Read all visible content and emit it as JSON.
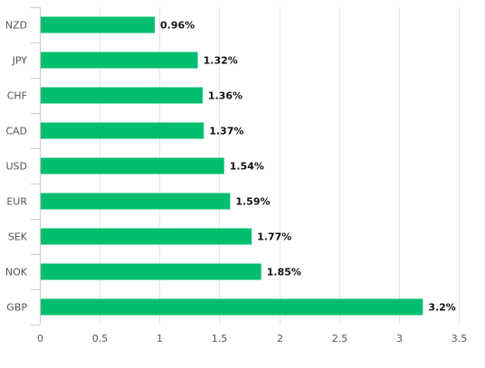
{
  "chart_data": {
    "type": "bar",
    "orientation": "horizontal",
    "categories": [
      "NZD",
      "JPY",
      "CHF",
      "CAD",
      "USD",
      "EUR",
      "SEK",
      "NOK",
      "GBP"
    ],
    "values": [
      0.96,
      1.32,
      1.36,
      1.37,
      1.54,
      1.59,
      1.77,
      1.85,
      3.2
    ],
    "data_labels": [
      "0.96%",
      "1.32%",
      "1.36%",
      "1.37%",
      "1.54%",
      "1.59%",
      "1.77%",
      "1.85%",
      "3.2%"
    ],
    "x_ticks": [
      "0",
      "0.5",
      "1",
      "1.5",
      "2",
      "2.5",
      "3",
      "3.5"
    ],
    "xlim": [
      0,
      3.5
    ],
    "title": "",
    "xlabel": "",
    "ylabel": "",
    "grid": "vertical",
    "legend": "none",
    "bar_color": "#00be6e"
  }
}
